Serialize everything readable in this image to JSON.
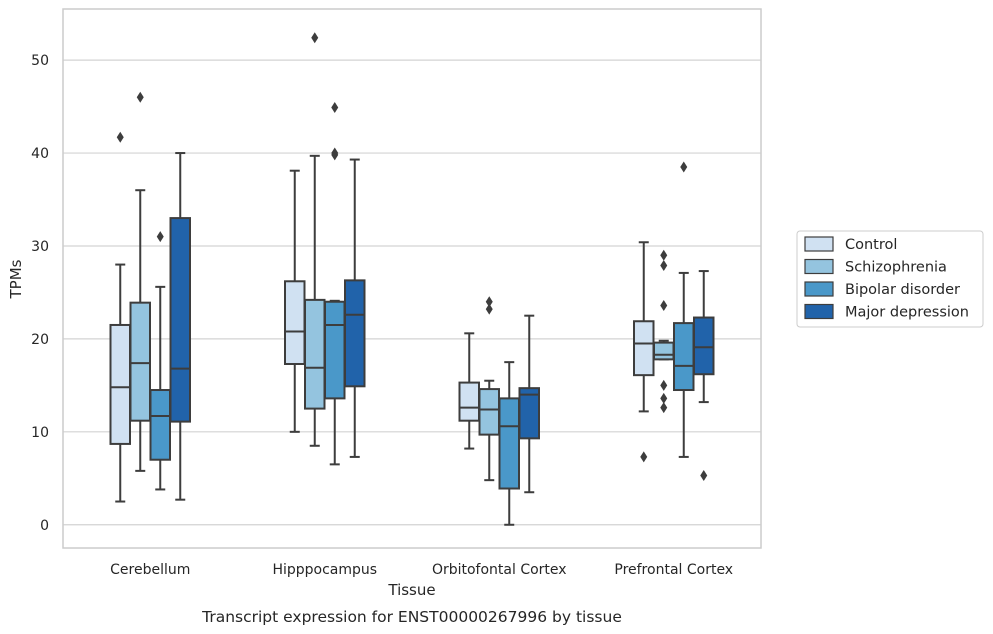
{
  "caption": "Transcript expression for ENST00000267996 by tissue",
  "chart_data": {
    "type": "boxplot",
    "xlabel": "Tissue",
    "ylabel": "TPMs",
    "ylim": [
      -2.5,
      55.5
    ],
    "yticks": [
      0,
      10,
      20,
      30,
      40,
      50
    ],
    "grid": true,
    "legend_position": "right",
    "categories": [
      "Cerebellum",
      "Hipppocampus",
      "Orbitofontal Cortex",
      "Prefrontal Cortex"
    ],
    "series": [
      {
        "name": "Control",
        "color": "#d0e1f2",
        "boxes": [
          {
            "whislo": 2.5,
            "q1": 8.7,
            "med": 14.8,
            "q3": 21.5,
            "whishi": 28.0,
            "fliers": [
              41.7
            ]
          },
          {
            "whislo": 10.0,
            "q1": 17.3,
            "med": 20.8,
            "q3": 26.2,
            "whishi": 38.1,
            "fliers": []
          },
          {
            "whislo": 8.2,
            "q1": 11.2,
            "med": 12.6,
            "q3": 15.3,
            "whishi": 20.6,
            "fliers": []
          },
          {
            "whislo": 12.2,
            "q1": 16.1,
            "med": 19.5,
            "q3": 21.9,
            "whishi": 30.4,
            "fliers": [
              7.3
            ]
          }
        ]
      },
      {
        "name": "Schizophrenia",
        "color": "#94c4df",
        "boxes": [
          {
            "whislo": 5.8,
            "q1": 11.2,
            "med": 17.4,
            "q3": 23.9,
            "whishi": 36.0,
            "fliers": [
              46.0
            ]
          },
          {
            "whislo": 8.5,
            "q1": 12.5,
            "med": 16.9,
            "q3": 24.2,
            "whishi": 39.7,
            "fliers": [
              52.4
            ]
          },
          {
            "whislo": 4.8,
            "q1": 9.7,
            "med": 12.4,
            "q3": 14.6,
            "whishi": 15.5,
            "fliers": [
              23.2,
              24.0
            ]
          },
          {
            "whislo": 17.8,
            "q1": 17.8,
            "med": 18.3,
            "q3": 19.6,
            "whishi": 19.8,
            "fliers": [
              12.6,
              13.6,
              15.0,
              23.6,
              27.9,
              29.0
            ]
          }
        ]
      },
      {
        "name": "Bipolar disorder",
        "color": "#4a98c9",
        "boxes": [
          {
            "whislo": 3.8,
            "q1": 7.0,
            "med": 11.7,
            "q3": 14.5,
            "whishi": 25.6,
            "fliers": [
              31.0
            ]
          },
          {
            "whislo": 6.5,
            "q1": 13.6,
            "med": 21.5,
            "q3": 24.0,
            "whishi": 24.1,
            "fliers": [
              39.8,
              40.0,
              44.9
            ]
          },
          {
            "whislo": 0.0,
            "q1": 3.9,
            "med": 10.6,
            "q3": 13.6,
            "whishi": 17.5,
            "fliers": []
          },
          {
            "whislo": 7.3,
            "q1": 14.5,
            "med": 17.1,
            "q3": 21.7,
            "whishi": 27.1,
            "fliers": [
              38.5
            ]
          }
        ]
      },
      {
        "name": "Major depression",
        "color": "#2163aa",
        "boxes": [
          {
            "whislo": 2.7,
            "q1": 11.1,
            "med": 16.8,
            "q3": 33.0,
            "whishi": 40.0,
            "fliers": []
          },
          {
            "whislo": 7.3,
            "q1": 14.9,
            "med": 22.6,
            "q3": 26.3,
            "whishi": 39.3,
            "fliers": []
          },
          {
            "whislo": 3.5,
            "q1": 9.3,
            "med": 14.0,
            "q3": 14.7,
            "whishi": 22.5,
            "fliers": []
          },
          {
            "whislo": 13.2,
            "q1": 16.2,
            "med": 19.1,
            "q3": 22.3,
            "whishi": 27.3,
            "fliers": [
              5.3
            ]
          }
        ]
      }
    ]
  }
}
